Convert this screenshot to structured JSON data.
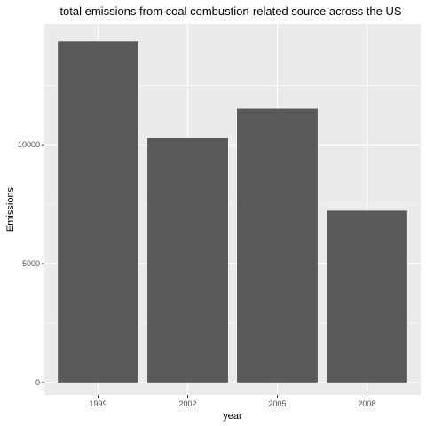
{
  "chart_data": {
    "type": "bar",
    "title": "total emissions from coal combustion-related source across the US",
    "xlabel": "year",
    "ylabel": "Emissions",
    "categories": [
      "1999",
      "2002",
      "2005",
      "2008"
    ],
    "values": [
      14370,
      10290,
      11520,
      7230
    ],
    "ylim": [
      -530,
      15090
    ],
    "yticks": [
      0,
      5000,
      10000
    ],
    "ytick_labels": [
      "0",
      "5000",
      "10000"
    ],
    "grid": true,
    "bar_color": "#595959",
    "panel_color": "#ebebeb",
    "grid_color": "#ffffff"
  }
}
